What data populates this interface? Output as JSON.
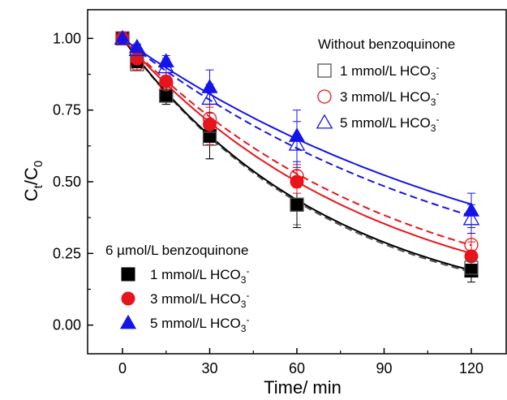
{
  "chart_data": {
    "type": "scatter",
    "xlabel": "Time/ min",
    "ylabel": "Ct/C0",
    "ylabel_main": "C",
    "ylabel_sub1": "t",
    "ylabel_slash": "/C",
    "ylabel_sub2": "0",
    "xlim": [
      -12,
      132
    ],
    "ylim": [
      -0.1,
      1.1
    ],
    "x_ticks": [
      0,
      30,
      60,
      90,
      120
    ],
    "y_ticks": [
      0.0,
      0.25,
      0.5,
      0.75,
      1.0
    ],
    "x_tick_labels": [
      "0",
      "30",
      "60",
      "90",
      "120"
    ],
    "y_tick_labels": [
      "0.00",
      "0.25",
      "0.50",
      "0.75",
      "1.00"
    ],
    "grid": false,
    "legend_groups": [
      {
        "title": "Without benzoquinone",
        "placement": "top-right",
        "fill": "open",
        "fit_style": "dashed"
      },
      {
        "title": "6 µmol/L benzoquinone",
        "placement": "bottom-left",
        "fill": "filled",
        "fit_style": "solid"
      }
    ],
    "series": [
      {
        "name": "1 mmol/L HCO3-",
        "group": 0,
        "marker": "square",
        "color": "#555555",
        "fit_color": "#555555",
        "x": [
          0,
          5,
          15,
          30,
          60,
          120
        ],
        "y": [
          1.0,
          0.91,
          0.8,
          0.65,
          0.42,
          0.2
        ],
        "err": [
          0.01,
          0.02,
          0.03,
          0.07,
          0.07,
          0.03
        ],
        "fit_k": 0.01405
      },
      {
        "name": "3 mmol/L HCO3-",
        "group": 0,
        "marker": "circle",
        "color": "#e8141b",
        "fit_color": "#e8141b",
        "x": [
          0,
          5,
          15,
          30,
          60,
          120
        ],
        "y": [
          1.0,
          0.91,
          0.84,
          0.72,
          0.52,
          0.28
        ],
        "err": [
          0.01,
          0.02,
          0.03,
          0.04,
          0.04,
          0.04
        ],
        "fit_k": 0.01065
      },
      {
        "name": "5 mmol/L HCO3-",
        "group": 0,
        "marker": "triangle",
        "color": "#1414e8",
        "fit_color": "#1414e8",
        "x": [
          0,
          5,
          15,
          30,
          60,
          120
        ],
        "y": [
          1.0,
          0.96,
          0.9,
          0.79,
          0.63,
          0.37
        ],
        "err": [
          0.01,
          0.02,
          0.03,
          0.05,
          0.08,
          0.05
        ],
        "fit_k": 0.00805
      },
      {
        "name": "1 mmol/L HCO3-",
        "group": 1,
        "marker": "square",
        "color": "#000000",
        "fit_color": "#000000",
        "x": [
          0,
          5,
          15,
          30,
          60,
          120
        ],
        "y": [
          1.0,
          0.92,
          0.8,
          0.66,
          0.42,
          0.19
        ],
        "err": [
          0.01,
          0.02,
          0.03,
          0.08,
          0.08,
          0.04
        ],
        "fit_k": 0.0138
      },
      {
        "name": "3 mmol/L HCO3-",
        "group": 1,
        "marker": "circle",
        "color": "#e8141b",
        "fit_color": "#e8141b",
        "x": [
          0,
          5,
          15,
          30,
          60,
          120
        ],
        "y": [
          1.0,
          0.93,
          0.85,
          0.7,
          0.5,
          0.24
        ],
        "err": [
          0.01,
          0.02,
          0.03,
          0.07,
          0.04,
          0.05
        ],
        "fit_k": 0.01155
      },
      {
        "name": "5 mmol/L HCO3-",
        "group": 1,
        "marker": "triangle",
        "color": "#1414e8",
        "fit_color": "#1414e8",
        "x": [
          0,
          5,
          15,
          30,
          60,
          120
        ],
        "y": [
          1.0,
          0.97,
          0.92,
          0.83,
          0.66,
          0.4
        ],
        "err": [
          0.01,
          0.01,
          0.02,
          0.06,
          0.09,
          0.06
        ],
        "fit_k": 0.0072
      }
    ]
  }
}
